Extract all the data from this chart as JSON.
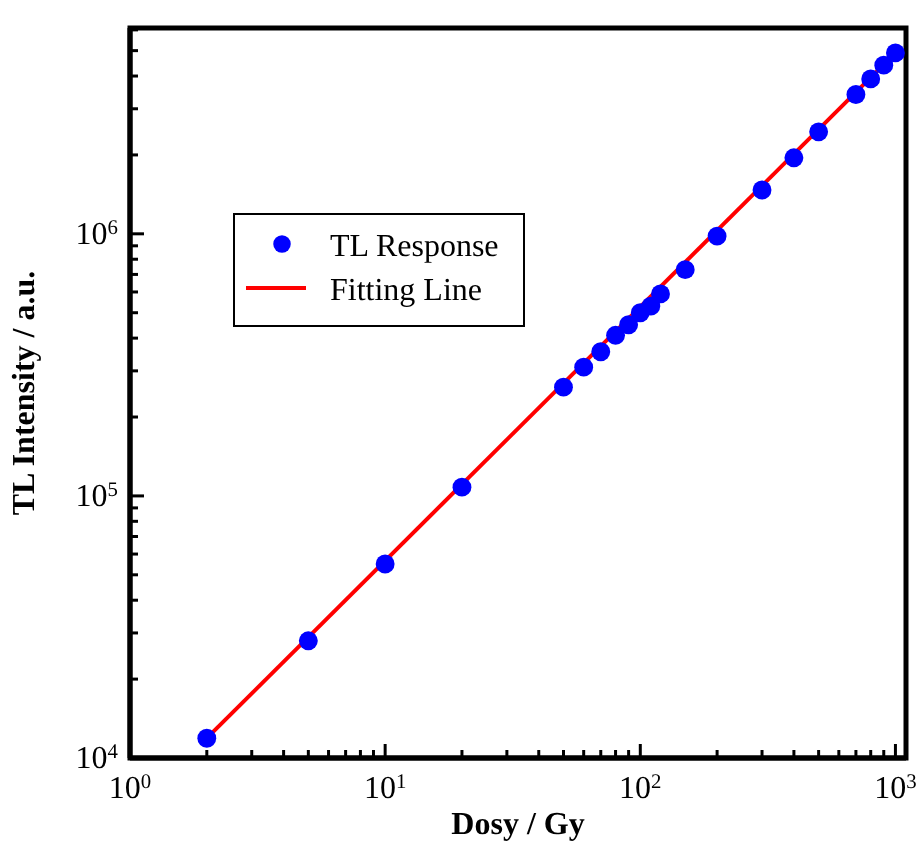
{
  "chart_data": {
    "type": "scatter",
    "xlabel": "Dosy / Gy",
    "ylabel": "TL Intensity / a.u.",
    "log": "xy",
    "grid": false,
    "legend": "top left",
    "xlim": [
      1,
      1100
    ],
    "ylim": [
      10000,
      6100000
    ],
    "xticks": [
      {
        "value": 1,
        "label": "10$^{0}$"
      },
      {
        "value": 2,
        "label": null
      },
      {
        "value": 3,
        "label": null
      },
      {
        "value": 4,
        "label": null
      },
      {
        "value": 5,
        "label": null
      },
      {
        "value": 6,
        "label": null
      },
      {
        "value": 7,
        "label": null
      },
      {
        "value": 8,
        "label": null
      },
      {
        "value": 9,
        "label": null
      },
      {
        "value": 10,
        "label": "10$^{1}$"
      },
      {
        "value": 20,
        "label": null
      },
      {
        "value": 30,
        "label": null
      },
      {
        "value": 40,
        "label": null
      },
      {
        "value": 50,
        "label": null
      },
      {
        "value": 60,
        "label": null
      },
      {
        "value": 70,
        "label": null
      },
      {
        "value": 80,
        "label": null
      },
      {
        "value": 90,
        "label": null
      },
      {
        "value": 100,
        "label": "10$^{2}$"
      },
      {
        "value": 200,
        "label": null
      },
      {
        "value": 300,
        "label": null
      },
      {
        "value": 400,
        "label": null
      },
      {
        "value": 500,
        "label": null
      },
      {
        "value": 600,
        "label": null
      },
      {
        "value": 700,
        "label": null
      },
      {
        "value": 800,
        "label": null
      },
      {
        "value": 900,
        "label": null
      },
      {
        "value": 1000,
        "label": "10$^{3}$"
      }
    ],
    "yticks": [
      {
        "value": 10000,
        "label": "10$^{4}$"
      },
      {
        "value": 20000,
        "label": null
      },
      {
        "value": 30000,
        "label": null
      },
      {
        "value": 40000,
        "label": null
      },
      {
        "value": 50000,
        "label": null
      },
      {
        "value": 60000,
        "label": null
      },
      {
        "value": 70000,
        "label": null
      },
      {
        "value": 80000,
        "label": null
      },
      {
        "value": 90000,
        "label": null
      },
      {
        "value": 100000,
        "label": "10$^{5}$"
      },
      {
        "value": 200000,
        "label": null
      },
      {
        "value": 300000,
        "label": null
      },
      {
        "value": 400000,
        "label": null
      },
      {
        "value": 500000,
        "label": null
      },
      {
        "value": 600000,
        "label": null
      },
      {
        "value": 700000,
        "label": null
      },
      {
        "value": 800000,
        "label": null
      },
      {
        "value": 900000,
        "label": null
      },
      {
        "value": 1000000,
        "label": "10$^{6}$"
      },
      {
        "value": 2000000,
        "label": null
      },
      {
        "value": 3000000,
        "label": null
      },
      {
        "value": 4000000,
        "label": null
      },
      {
        "value": 5000000,
        "label": null
      },
      {
        "value": 6000000,
        "label": null
      }
    ],
    "series": [
      {
        "name": "TL Response",
        "marker": "circle",
        "color": "#0000ff",
        "x": [
          2,
          5,
          10,
          20,
          50,
          60,
          70,
          80,
          90,
          100,
          110,
          120,
          150,
          200,
          300,
          400,
          500,
          700,
          800,
          900,
          1000
        ],
        "values": [
          11900,
          28000,
          55000,
          108000,
          260000,
          310000,
          355000,
          410000,
          450000,
          500000,
          530000,
          590000,
          730000,
          980000,
          1470000,
          1950000,
          2450000,
          3400000,
          3900000,
          4400000,
          4900000
        ]
      },
      {
        "name": "Fitting Line",
        "type": "line",
        "marker": "none",
        "color": "#ff0000",
        "x": [
          2,
          1000
        ],
        "values": [
          11900,
          4900000
        ]
      }
    ]
  }
}
